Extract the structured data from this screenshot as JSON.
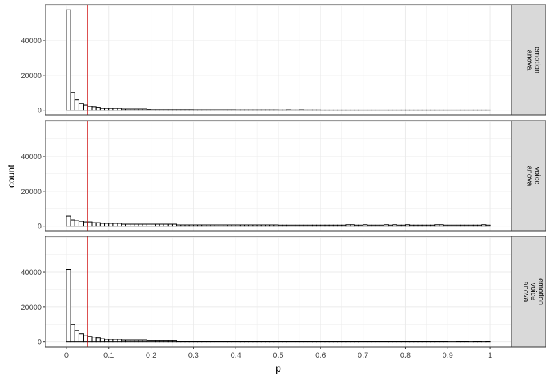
{
  "chart_data": {
    "type": "bar",
    "subtype": "faceted histogram",
    "xlabel": "p",
    "ylabel": "count",
    "bin_width": 0.01,
    "xlim": [
      -0.05,
      1.05
    ],
    "ylim": [
      0,
      60000
    ],
    "x_ticks": [
      0,
      0.1,
      0.2,
      0.3,
      0.4,
      0.5,
      0.6,
      0.7,
      0.8,
      0.9,
      1
    ],
    "x_tick_labels": [
      "0",
      "0.1",
      "0.2",
      "0.3",
      "0.4",
      "0.5",
      "0.6",
      "0.7",
      "0.8",
      "0.9",
      "1"
    ],
    "y_ticks": [
      0,
      20000,
      40000
    ],
    "y_tick_labels": [
      "0",
      "20000",
      "40000"
    ],
    "vline": 0.05,
    "vline_color": "#cc0000",
    "grid": true,
    "strip_color": "#d9d9d9",
    "panels": [
      {
        "strip": [
          "anova",
          "emotion"
        ],
        "counts": [
          57600,
          10200,
          5900,
          3900,
          3000,
          2200,
          1900,
          1600,
          1000,
          1000,
          1000,
          1000,
          1000,
          650,
          650,
          650,
          650,
          650,
          650,
          400,
          300,
          300,
          300,
          300,
          300,
          300,
          300,
          300,
          300,
          300,
          250,
          250,
          250,
          250,
          250,
          250,
          250,
          250,
          250,
          250,
          200,
          200,
          200,
          200,
          200,
          200,
          200,
          200,
          200,
          200,
          150,
          150,
          250,
          150,
          150,
          250,
          150,
          150,
          150,
          150,
          100,
          100,
          100,
          100,
          100,
          100,
          100,
          100,
          100,
          100,
          100,
          100,
          100,
          100,
          100,
          100,
          100,
          100,
          100,
          100,
          100,
          100,
          100,
          100,
          100,
          100,
          100,
          100,
          100,
          100,
          100,
          100,
          100,
          100,
          100,
          100,
          100,
          100,
          100,
          100
        ]
      },
      {
        "strip": [
          "anova",
          "voice"
        ],
        "counts": [
          5750,
          3400,
          3000,
          2600,
          2200,
          2200,
          1800,
          1800,
          1450,
          1450,
          1450,
          1450,
          1450,
          1050,
          1050,
          1050,
          1050,
          1050,
          1050,
          1050,
          1050,
          1050,
          1050,
          1050,
          1050,
          1050,
          650,
          650,
          650,
          650,
          650,
          650,
          650,
          650,
          650,
          650,
          650,
          650,
          650,
          650,
          650,
          650,
          650,
          650,
          650,
          650,
          650,
          650,
          650,
          650,
          550,
          550,
          550,
          550,
          550,
          550,
          550,
          550,
          550,
          550,
          550,
          550,
          550,
          550,
          550,
          550,
          750,
          750,
          550,
          550,
          750,
          550,
          550,
          550,
          550,
          750,
          550,
          750,
          550,
          550,
          750,
          550,
          550,
          550,
          550,
          550,
          550,
          750,
          750,
          550,
          550,
          550,
          550,
          550,
          550,
          550,
          550,
          550,
          750,
          550
        ]
      },
      {
        "strip": [
          "anova",
          "voice",
          "emotion"
        ],
        "counts": [
          41400,
          10000,
          6500,
          4700,
          3900,
          3100,
          2750,
          2350,
          1800,
          1450,
          1450,
          1450,
          1450,
          1050,
          1050,
          1050,
          1050,
          1050,
          1050,
          800,
          800,
          800,
          800,
          800,
          800,
          800,
          300,
          300,
          300,
          300,
          300,
          300,
          300,
          300,
          300,
          300,
          300,
          300,
          300,
          300,
          300,
          300,
          300,
          300,
          300,
          300,
          300,
          300,
          300,
          300,
          300,
          300,
          300,
          300,
          300,
          300,
          300,
          300,
          300,
          300,
          300,
          300,
          300,
          300,
          300,
          300,
          300,
          300,
          300,
          300,
          300,
          300,
          300,
          300,
          300,
          300,
          300,
          300,
          300,
          300,
          300,
          300,
          300,
          300,
          300,
          300,
          300,
          300,
          300,
          300,
          450,
          450,
          300,
          300,
          300,
          450,
          300,
          300,
          450,
          300
        ]
      }
    ]
  }
}
